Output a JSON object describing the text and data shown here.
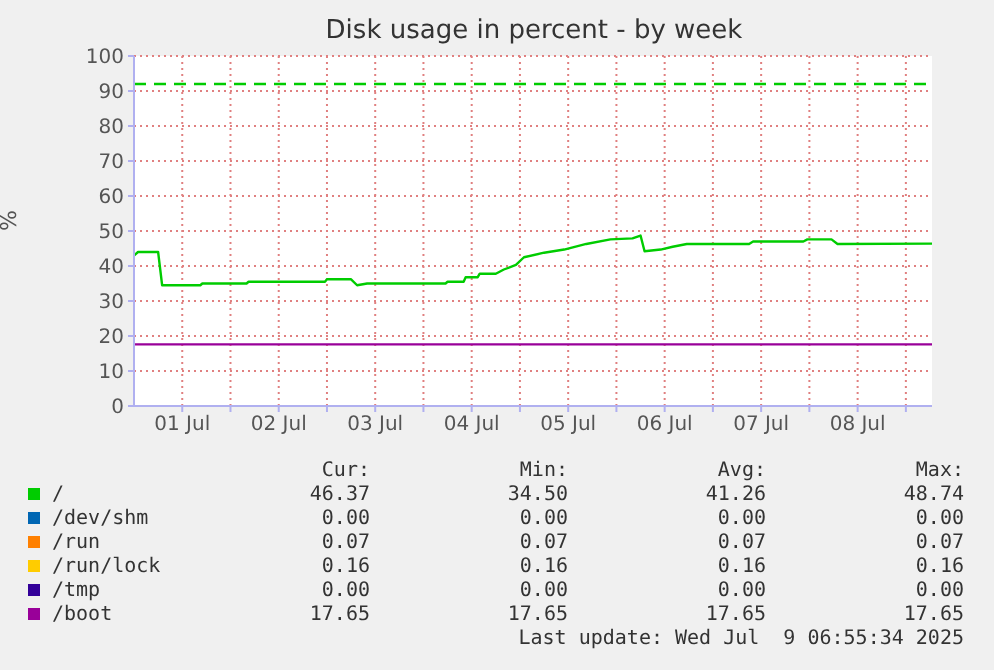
{
  "chart_data": {
    "type": "line",
    "title": "Disk usage in percent - by week",
    "ylabel": "%",
    "x": [
      "2025-07-01T00:00",
      "2025-07-01T01:00",
      "2025-07-01T06:00",
      "2025-07-01T07:00",
      "2025-07-01T16:30",
      "2025-07-01T17:00",
      "2025-07-02T04:00",
      "2025-07-02T04:30",
      "2025-07-02T23:30",
      "2025-07-03T00:00",
      "2025-07-03T06:00",
      "2025-07-03T07:30",
      "2025-07-03T10:00",
      "2025-07-04T05:30",
      "2025-07-04T06:00",
      "2025-07-04T10:00",
      "2025-07-04T10:30",
      "2025-07-04T13:30",
      "2025-07-04T14:00",
      "2025-07-04T18:00",
      "2025-07-04T20:00",
      "2025-07-04T23:00",
      "2025-07-05T01:00",
      "2025-07-05T06:00",
      "2025-07-05T11:00",
      "2025-07-05T16:30",
      "2025-07-05T22:30",
      "2025-07-06T04:00",
      "2025-07-06T06:00",
      "2025-07-06T07:00",
      "2025-07-06T11:00",
      "2025-07-06T14:00",
      "2025-07-06T17:30",
      "2025-07-07T09:00",
      "2025-07-07T10:00",
      "2025-07-07T22:30",
      "2025-07-07T23:30",
      "2025-07-08T05:30",
      "2025-07-08T07:00",
      "2025-07-09T06:30"
    ],
    "series": [
      {
        "name": "/",
        "color": "#00cc00",
        "values": [
          43,
          44,
          44,
          34.5,
          34.5,
          35,
          35,
          35.5,
          35.5,
          36.2,
          36.2,
          34.5,
          35,
          35,
          35.5,
          35.5,
          36.8,
          36.8,
          37.8,
          37.8,
          39.0,
          40.3,
          42.5,
          43.8,
          44.7,
          46.3,
          47.6,
          47.9,
          48.7,
          44.2,
          44.7,
          45.5,
          46.3,
          46.3,
          47.0,
          47.0,
          47.6,
          47.6,
          46.3,
          46.4
        ]
      },
      {
        "name": "/dev/shm",
        "color": "#0066b3",
        "values": [
          null,
          null,
          null,
          null,
          null,
          null,
          null,
          null,
          null,
          null,
          null,
          null,
          null,
          null,
          null,
          null,
          null,
          null,
          null,
          null,
          null,
          null,
          null,
          null,
          null,
          null,
          null,
          null,
          null,
          null,
          null,
          null,
          null,
          null,
          null,
          null,
          null,
          null,
          null,
          null
        ]
      },
      {
        "name": "/run",
        "color": "#ff8000",
        "values": [
          null,
          null,
          null,
          null,
          null,
          null,
          null,
          null,
          null,
          null,
          null,
          null,
          null,
          null,
          null,
          null,
          null,
          null,
          null,
          null,
          null,
          null,
          null,
          null,
          null,
          null,
          null,
          null,
          null,
          null,
          null,
          null,
          null,
          null,
          null,
          null,
          null,
          null,
          null,
          null
        ]
      },
      {
        "name": "/run/lock",
        "color": "#ffcc00",
        "values": [
          null,
          null,
          null,
          null,
          null,
          null,
          null,
          null,
          null,
          null,
          null,
          null,
          null,
          null,
          null,
          null,
          null,
          null,
          null,
          null,
          null,
          null,
          null,
          null,
          null,
          null,
          null,
          null,
          null,
          null,
          null,
          null,
          null,
          null,
          null,
          null,
          null,
          null,
          null,
          null
        ]
      },
      {
        "name": "/tmp",
        "color": "#330099",
        "values": [
          null,
          null,
          null,
          null,
          null,
          null,
          null,
          null,
          null,
          null,
          null,
          null,
          null,
          null,
          null,
          null,
          null,
          null,
          null,
          null,
          null,
          null,
          null,
          null,
          null,
          null,
          null,
          null,
          null,
          null,
          null,
          null,
          null,
          null,
          null,
          null,
          null,
          null,
          null,
          null
        ]
      },
      {
        "name": "/boot",
        "color": "#990099",
        "x": [
          "2025-07-01T00:00",
          "2025-07-09T06:30"
        ],
        "values": [
          17.6,
          17.6
        ]
      }
    ],
    "xlim": [
      "2025-07-01T00:00",
      "2025-07-09T06:30"
    ],
    "xticks": [
      {
        "value": "2025-07-01T12:00",
        "label": "01 Jul"
      },
      {
        "value": "2025-07-02T00:00",
        "label": null
      },
      {
        "value": "2025-07-02T12:00",
        "label": "02 Jul"
      },
      {
        "value": "2025-07-03T00:00",
        "label": null
      },
      {
        "value": "2025-07-03T12:00",
        "label": "03 Jul"
      },
      {
        "value": "2025-07-04T00:00",
        "label": null
      },
      {
        "value": "2025-07-04T12:00",
        "label": "04 Jul"
      },
      {
        "value": "2025-07-05T00:00",
        "label": null
      },
      {
        "value": "2025-07-05T12:00",
        "label": "05 Jul"
      },
      {
        "value": "2025-07-06T00:00",
        "label": null
      },
      {
        "value": "2025-07-06T12:00",
        "label": "06 Jul"
      },
      {
        "value": "2025-07-07T00:00",
        "label": null
      },
      {
        "value": "2025-07-07T12:00",
        "label": "07 Jul"
      },
      {
        "value": "2025-07-08T00:00",
        "label": null
      },
      {
        "value": "2025-07-08T12:00",
        "label": "08 Jul"
      },
      {
        "value": "2025-07-09T00:00",
        "label": null
      }
    ],
    "ylim": [
      0,
      100
    ],
    "yticks": [
      0,
      10,
      20,
      30,
      40,
      50,
      60,
      70,
      80,
      90,
      100
    ],
    "grid": true,
    "legend": "bottom",
    "ref_lines": [
      {
        "axis": "y",
        "value": 92,
        "color": "#00cc00",
        "line_style": "dashed"
      }
    ],
    "annotations": [
      "Cur:",
      "Min:",
      "Avg:",
      "Max:",
      "46.37",
      "34.50",
      "41.26",
      "48.74",
      "0.00",
      "0.00",
      "0.00",
      "0.00",
      "0.07",
      "0.07",
      "0.07",
      "0.07",
      "0.16",
      "0.16",
      "0.16",
      "0.16",
      "0.00",
      "0.00",
      "0.00",
      "0.00",
      "17.65",
      "17.65",
      "17.65",
      "17.65",
      "Last update: Wed Jul  9 06:55:34 2025"
    ]
  }
}
